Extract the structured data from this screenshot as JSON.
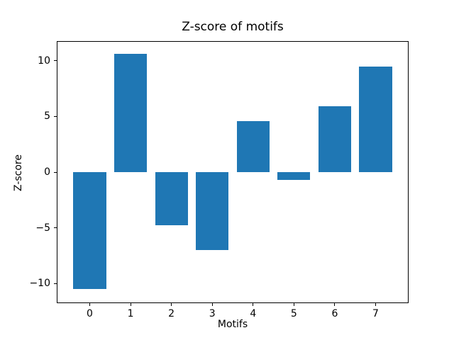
{
  "figure": {
    "title": "Z-score of motifs",
    "xlabel": "Motifs",
    "ylabel": "Z-score"
  },
  "chart_data": {
    "type": "bar",
    "title": "Z-score of motifs",
    "xlabel": "Motifs",
    "ylabel": "Z-score",
    "categories": [
      "0",
      "1",
      "2",
      "3",
      "4",
      "5",
      "6",
      "7"
    ],
    "values": [
      -10.5,
      10.6,
      -4.8,
      -7.0,
      4.6,
      -0.7,
      5.9,
      9.5
    ],
    "bar_color": "#1f77b4",
    "bar_width": 0.8,
    "xlim": [
      -0.79,
      7.79
    ],
    "ylim": [
      -11.7,
      11.7
    ],
    "yticks": [
      -10,
      -5,
      0,
      5,
      10
    ],
    "ytick_labels": [
      "−10",
      "−5",
      "0",
      "5",
      "10"
    ],
    "grid": false,
    "legend_position": "none"
  }
}
